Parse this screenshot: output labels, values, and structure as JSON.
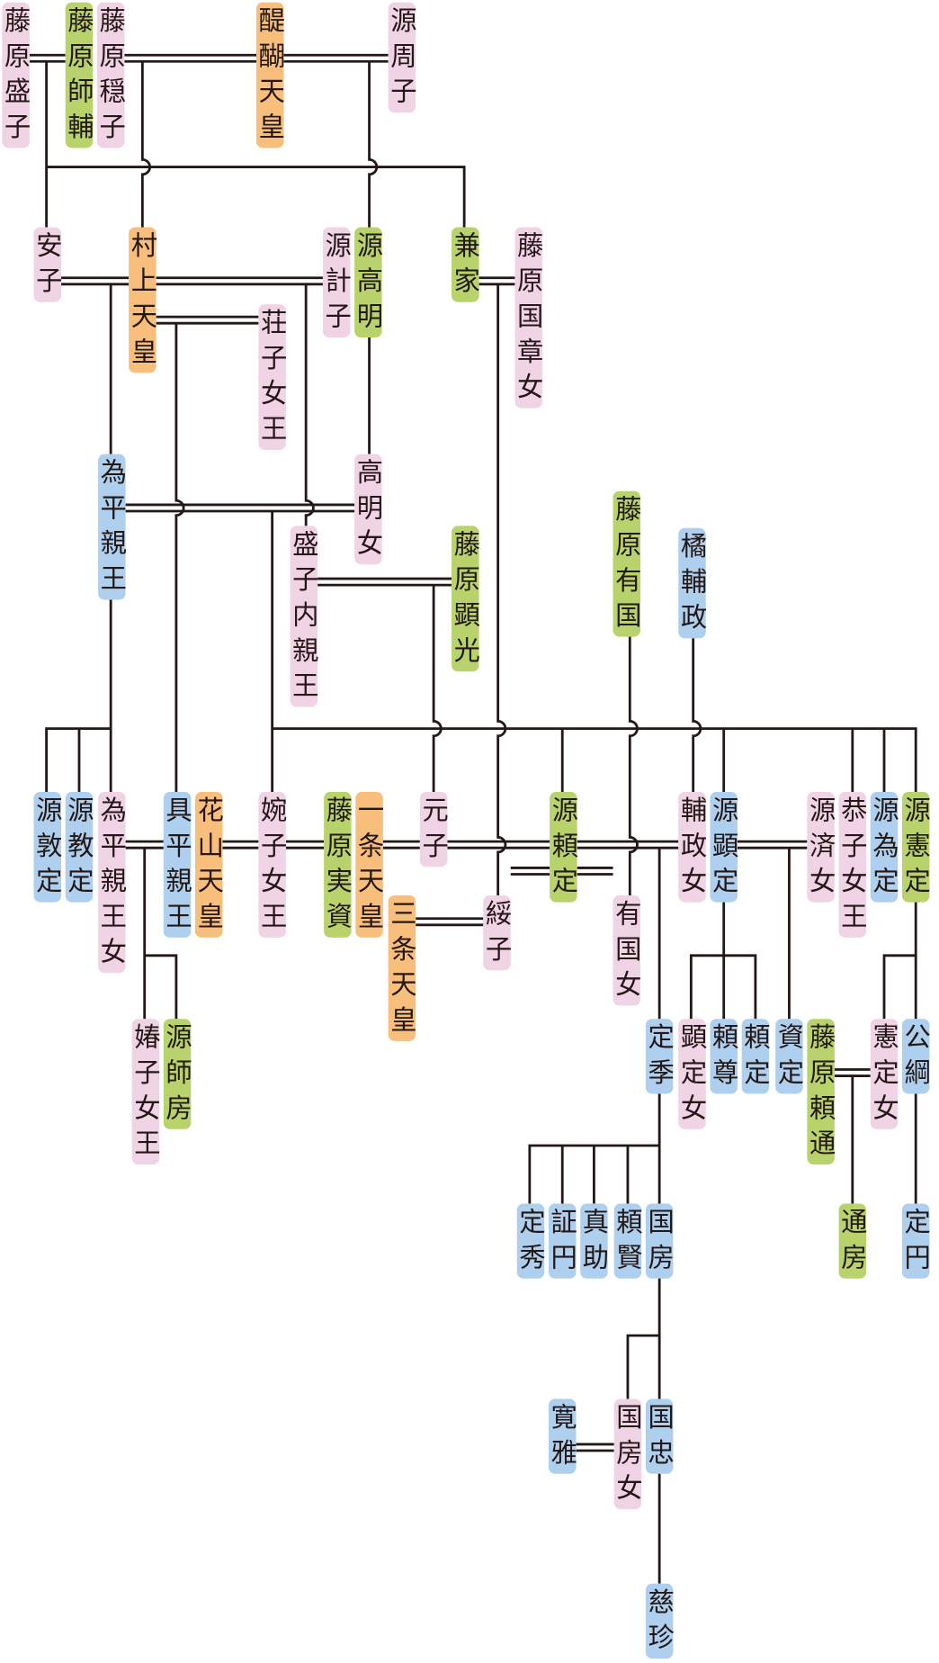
{
  "colors": {
    "p": "#f1d3e6",
    "g": "#b9d36c",
    "o": "#f8be7c",
    "b": "#aed0ee",
    "line": "#231815"
  },
  "people": [
    {
      "name": "藤原盛子",
      "color": "p"
    },
    {
      "name": "藤原師輔",
      "color": "g"
    },
    {
      "name": "藤原穏子",
      "color": "p"
    },
    {
      "name": "醍醐天皇",
      "color": "o"
    },
    {
      "name": "源周子",
      "color": "p"
    },
    {
      "name": "安子",
      "color": "p"
    },
    {
      "name": "村上天皇",
      "color": "o"
    },
    {
      "name": "源計子",
      "color": "p"
    },
    {
      "name": "源高明",
      "color": "g"
    },
    {
      "name": "兼家",
      "color": "g"
    },
    {
      "name": "藤原国章女",
      "color": "p"
    },
    {
      "name": "荘子女王",
      "color": "p"
    },
    {
      "name": "為平親王",
      "color": "b"
    },
    {
      "name": "高明女",
      "color": "p"
    },
    {
      "name": "盛子内親王",
      "color": "p"
    },
    {
      "name": "藤原顕光",
      "color": "g"
    },
    {
      "name": "藤原有国",
      "color": "g"
    },
    {
      "name": "橘輔政",
      "color": "b"
    },
    {
      "name": "源敦定",
      "color": "b"
    },
    {
      "name": "源教定",
      "color": "b"
    },
    {
      "name": "為平親王女",
      "color": "p"
    },
    {
      "name": "具平親王",
      "color": "b"
    },
    {
      "name": "花山天皇",
      "color": "o"
    },
    {
      "name": "婉子女王",
      "color": "p"
    },
    {
      "name": "藤原実資",
      "color": "g"
    },
    {
      "name": "一条天皇",
      "color": "o"
    },
    {
      "name": "三条天皇",
      "color": "o"
    },
    {
      "name": "元子",
      "color": "p"
    },
    {
      "name": "綏子",
      "color": "p"
    },
    {
      "name": "源頼定",
      "color": "g"
    },
    {
      "name": "有国女",
      "color": "p"
    },
    {
      "name": "輔政女",
      "color": "p"
    },
    {
      "name": "源顕定",
      "color": "b"
    },
    {
      "name": "源済女",
      "color": "p"
    },
    {
      "name": "恭子女王",
      "color": "p"
    },
    {
      "name": "源為定",
      "color": "b"
    },
    {
      "name": "源憲定",
      "color": "g"
    },
    {
      "name": "媋子女王",
      "color": "p"
    },
    {
      "name": "源師房",
      "color": "g"
    },
    {
      "name": "定季",
      "color": "b"
    },
    {
      "name": "顕定女",
      "color": "p"
    },
    {
      "name": "頼尊",
      "color": "b"
    },
    {
      "name": "頼定",
      "color": "b"
    },
    {
      "name": "資定",
      "color": "b"
    },
    {
      "name": "藤原頼通",
      "color": "g"
    },
    {
      "name": "憲定女",
      "color": "p"
    },
    {
      "name": "公綱",
      "color": "b"
    },
    {
      "name": "定秀",
      "color": "b"
    },
    {
      "name": "証円",
      "color": "b"
    },
    {
      "name": "真助",
      "color": "b"
    },
    {
      "name": "頼賢",
      "color": "b"
    },
    {
      "name": "国房",
      "color": "b"
    },
    {
      "name": "通房",
      "color": "g"
    },
    {
      "name": "定円",
      "color": "b"
    },
    {
      "name": "寛雅",
      "color": "b"
    },
    {
      "name": "国房女",
      "color": "p"
    },
    {
      "name": "国忠",
      "color": "b"
    },
    {
      "name": "慈珍",
      "color": "b"
    }
  ]
}
